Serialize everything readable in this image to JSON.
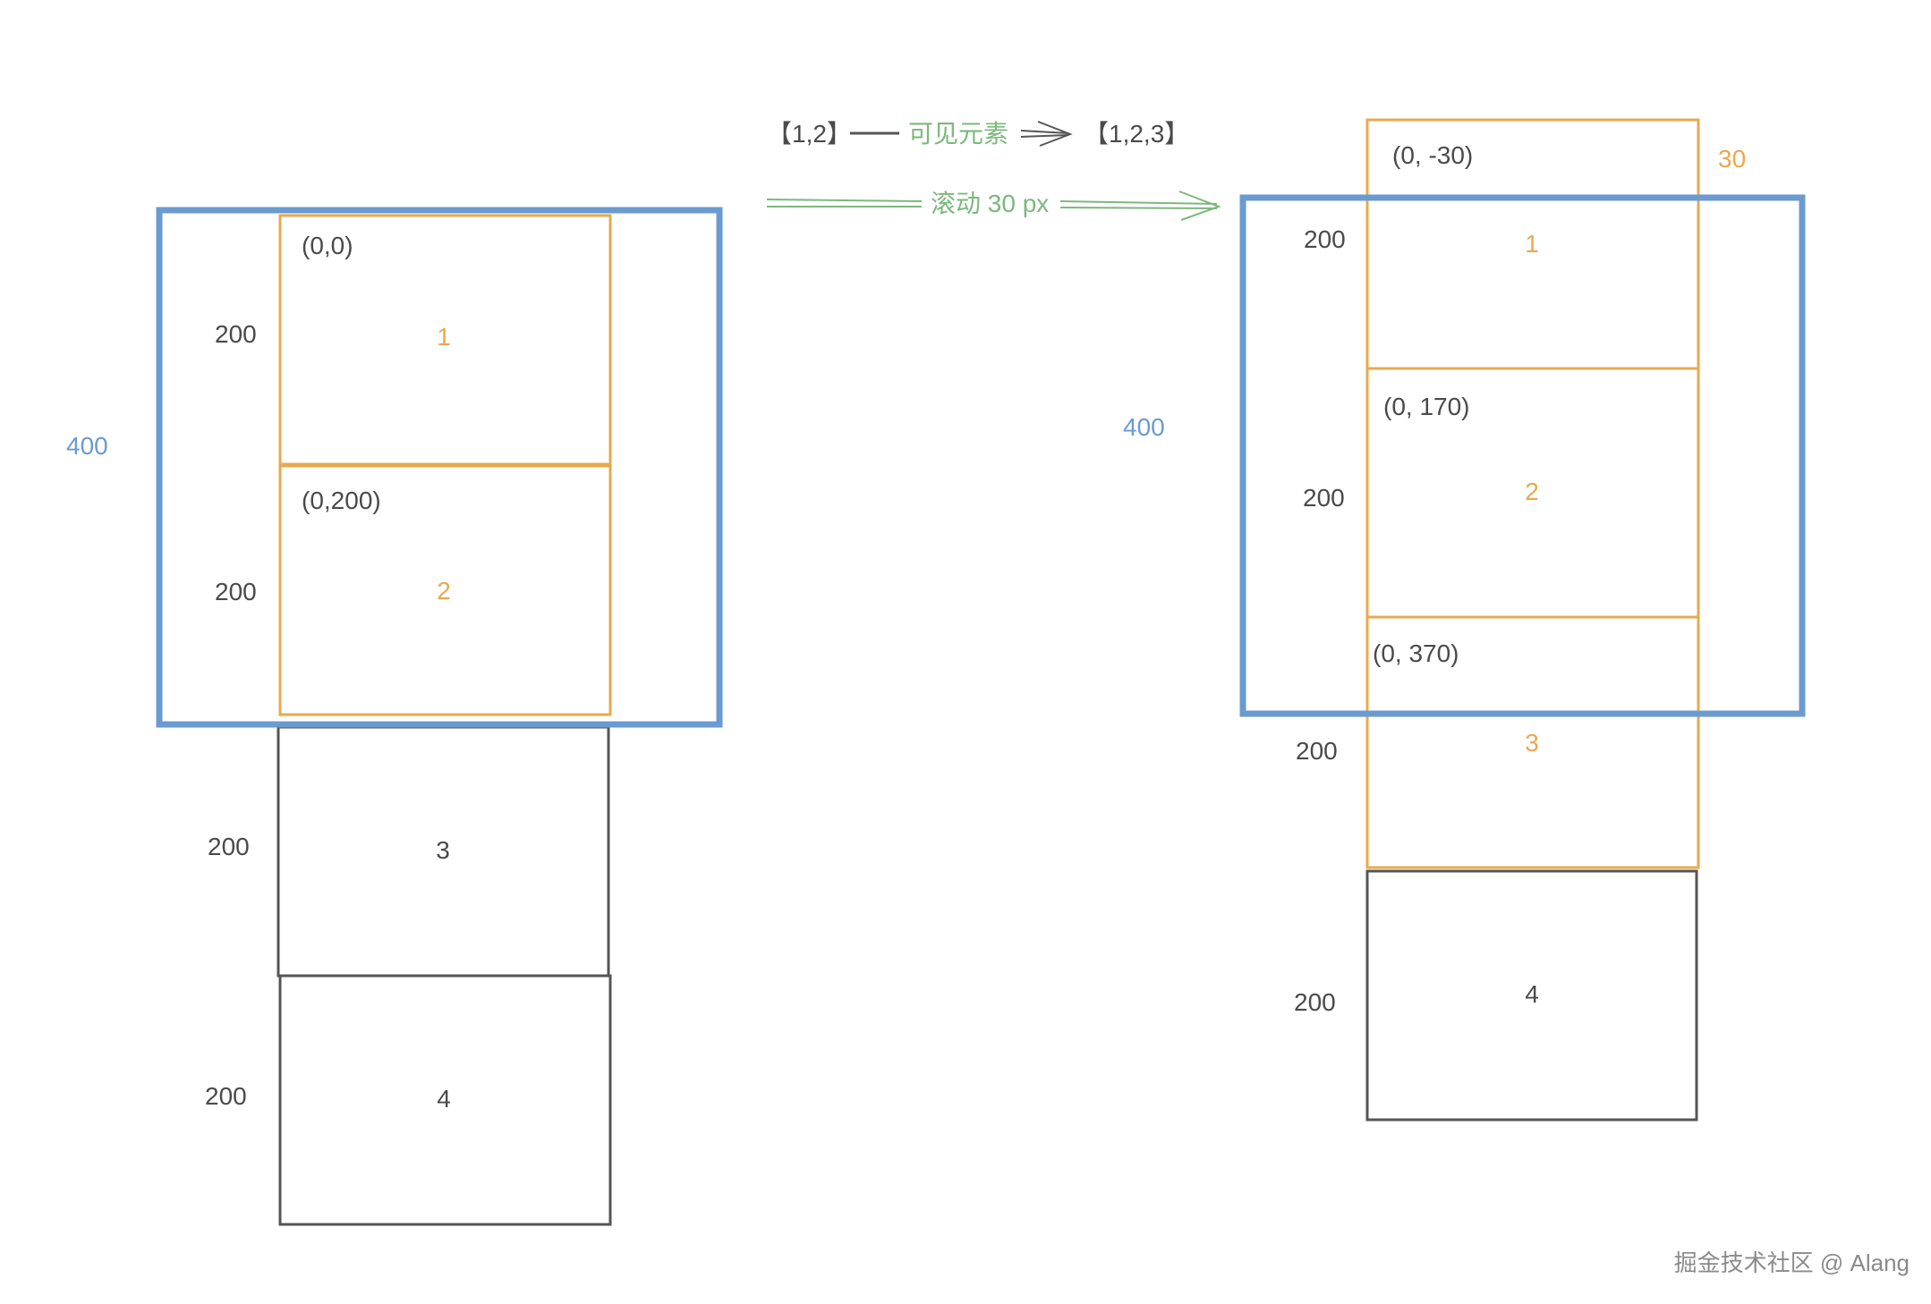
{
  "colors": {
    "viewport": "#6a9bd0",
    "visible": "#e8a94f",
    "hidden": "#555555",
    "annotation": "#7cb87c"
  },
  "header": {
    "before": "【1,2】",
    "visible_label": "可见元素",
    "after": "【1,2,3】",
    "scroll_label": "滚动 30 px"
  },
  "left": {
    "viewport_height": "400",
    "items": [
      {
        "label": "1",
        "height": "200",
        "coord": "(0,0)",
        "visible": true
      },
      {
        "label": "2",
        "height": "200",
        "coord": "(0,200)",
        "visible": true
      },
      {
        "label": "3",
        "height": "200",
        "visible": false
      },
      {
        "label": "4",
        "height": "200",
        "visible": false
      }
    ]
  },
  "right": {
    "viewport_height": "400",
    "scroll_offset": "30",
    "items": [
      {
        "label": "1",
        "height": "200",
        "coord": "(0, -30)",
        "visible": true
      },
      {
        "label": "2",
        "height": "200",
        "coord": "(0, 170)",
        "visible": true
      },
      {
        "label": "3",
        "height": "200",
        "coord": "(0, 370)",
        "visible": true
      },
      {
        "label": "4",
        "height": "200",
        "visible": false
      }
    ]
  },
  "watermark": "掘金技术社区 @ Alang"
}
